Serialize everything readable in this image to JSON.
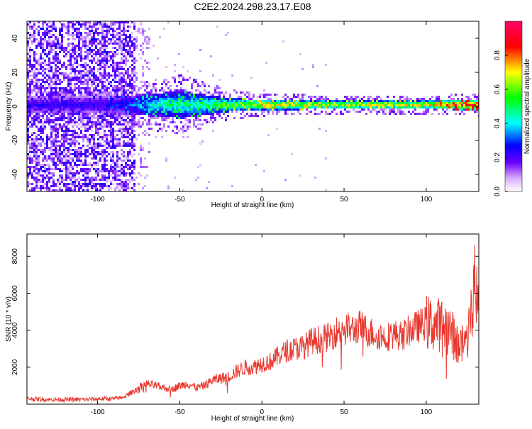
{
  "figure": {
    "title": "C2E2.2024.298.23.17.E08"
  },
  "colors": {
    "snr_line": "#e8382e",
    "background": "#ffffff",
    "axis": "#000000"
  },
  "chart_data": [
    {
      "type": "heatmap",
      "title": "C2E2.2024.298.23.17.E08",
      "xlabel": "Height of straight line (km)",
      "ylabel": "Frequency (Hz)",
      "xlim": [
        -143,
        132
      ],
      "ylim": [
        -50,
        50
      ],
      "xticks": [
        -100,
        -50,
        0,
        50,
        100
      ],
      "yticks": [
        -40,
        -20,
        0,
        20,
        40
      ],
      "colorbar": {
        "label": "Normalized spectral amplitude",
        "range": [
          0,
          1
        ],
        "ticks": [
          0.0,
          0.2,
          0.4,
          0.6,
          0.8
        ],
        "tick_labels": [
          "0.0",
          "0.2",
          "0.4",
          "0.6",
          "0.8"
        ],
        "colormap": "rainbow (white → violet → blue → cyan → green → yellow → red → magenta)"
      },
      "description_features": {
        "noise_region_x": [
          -143,
          -78
        ],
        "noise_amplitude_typical": 0.15,
        "band_center_hz": 1.5,
        "band_halfwidth_hz_at_x": [
          [
            -90,
            5
          ],
          [
            -50,
            8
          ],
          [
            -20,
            4
          ],
          [
            0,
            3
          ],
          [
            50,
            2.5
          ],
          [
            100,
            2.5
          ],
          [
            130,
            3
          ]
        ],
        "band_amplitude_at_x": [
          [
            -90,
            0.25
          ],
          [
            -60,
            0.5
          ],
          [
            -30,
            0.55
          ],
          [
            0,
            0.75
          ],
          [
            50,
            0.7
          ],
          [
            100,
            0.75
          ],
          [
            120,
            0.95
          ]
        ]
      }
    },
    {
      "type": "line",
      "xlabel": "Height of straight line (km)",
      "ylabel": "SNR (10 * v/v)",
      "xlim": [
        -143,
        132
      ],
      "ylim": [
        0,
        9200
      ],
      "xticks": [
        -100,
        -50,
        0,
        50,
        100
      ],
      "yticks": [
        2000,
        4000,
        6000,
        8000
      ],
      "grid": false,
      "series": [
        {
          "x": [
            -143,
            -130,
            -120,
            -110,
            -100,
            -90,
            -85,
            -80,
            -75,
            -70,
            -65,
            -60,
            -55,
            -50,
            -45,
            -40,
            -35,
            -30,
            -25,
            -20,
            -15,
            -10,
            -5,
            0,
            5,
            10,
            15,
            20,
            25,
            30,
            35,
            40,
            45,
            50,
            55,
            60,
            65,
            70,
            75,
            80,
            85,
            90,
            95,
            100,
            105,
            110,
            115,
            120,
            125,
            128,
            130,
            132
          ],
          "y": [
            300,
            250,
            250,
            250,
            280,
            300,
            350,
            600,
            900,
            1100,
            1000,
            900,
            800,
            1000,
            1100,
            900,
            1000,
            1300,
            1400,
            1500,
            1800,
            2000,
            2000,
            2200,
            2300,
            2600,
            2900,
            3000,
            3100,
            3400,
            3500,
            3600,
            3900,
            4200,
            4000,
            4200,
            3900,
            3800,
            3600,
            3800,
            3700,
            4000,
            4200,
            4400,
            4300,
            4300,
            4000,
            3000,
            3700,
            5500,
            7000,
            4500
          ]
        }
      ]
    }
  ]
}
